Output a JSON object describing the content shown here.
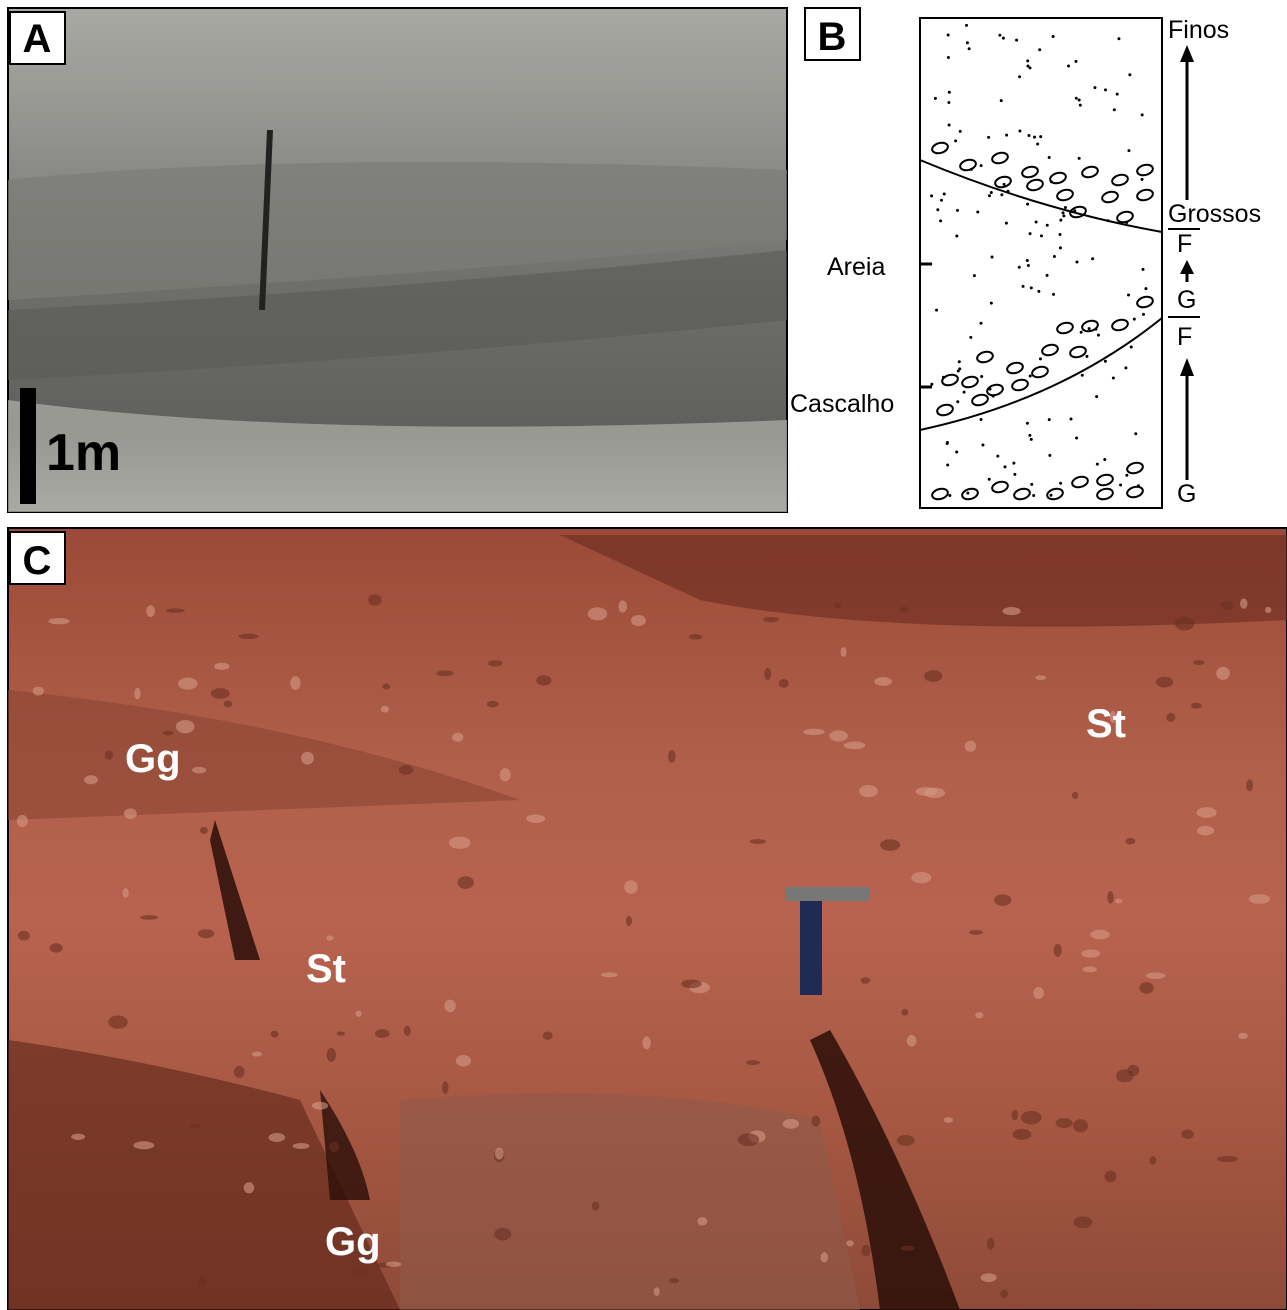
{
  "panel_a": {
    "label": "A",
    "scale_label": "1m"
  },
  "panel_b": {
    "label": "B",
    "right_labels": [
      "Finos",
      "Grossos",
      "F",
      "G",
      "F",
      "G"
    ],
    "left_labels": [
      "Areia",
      "Cascalho"
    ]
  },
  "panel_c": {
    "label": "C",
    "facies": [
      "Gg",
      "St",
      "St",
      "Gg"
    ]
  }
}
